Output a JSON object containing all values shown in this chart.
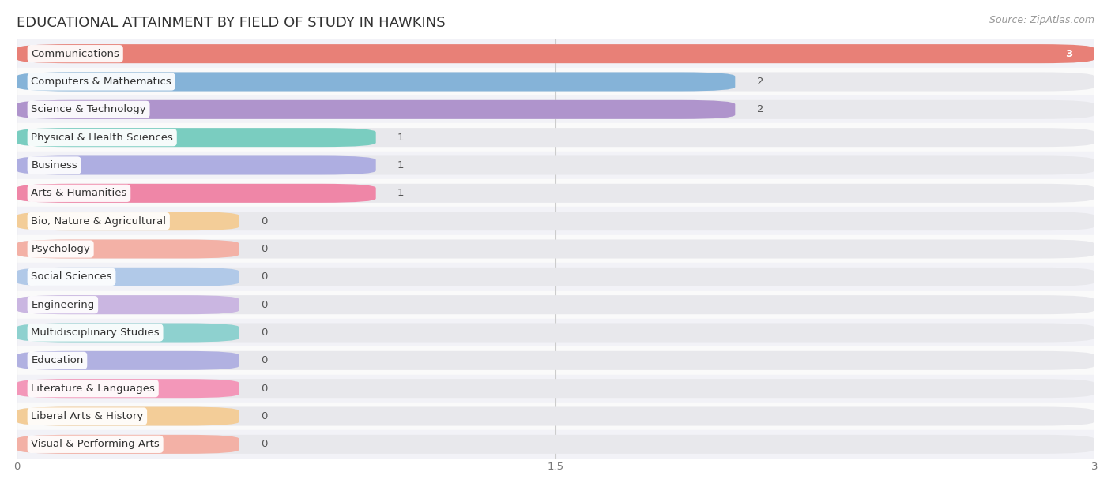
{
  "title": "EDUCATIONAL ATTAINMENT BY FIELD OF STUDY IN HAWKINS",
  "source": "Source: ZipAtlas.com",
  "categories": [
    "Communications",
    "Computers & Mathematics",
    "Science & Technology",
    "Physical & Health Sciences",
    "Business",
    "Arts & Humanities",
    "Bio, Nature & Agricultural",
    "Psychology",
    "Social Sciences",
    "Engineering",
    "Multidisciplinary Studies",
    "Education",
    "Literature & Languages",
    "Liberal Arts & History",
    "Visual & Performing Arts"
  ],
  "values": [
    3,
    2,
    2,
    1,
    1,
    1,
    0,
    0,
    0,
    0,
    0,
    0,
    0,
    0,
    0
  ],
  "bar_colors": [
    "#E8756A",
    "#7aaed6",
    "#a98bc9",
    "#6ecbbc",
    "#a8a8e0",
    "#f07ba0",
    "#f5c98a",
    "#f5a89a",
    "#a8c4e8",
    "#c5aee0",
    "#7ececa",
    "#a8a8e0",
    "#f589b0",
    "#f5c98a",
    "#f5a89a"
  ],
  "xlim": [
    0,
    3
  ],
  "xticks": [
    0,
    1.5,
    3
  ],
  "bar_bg_color": "#e8e8ec",
  "row_bg_colors": [
    "#f2f2f7",
    "#fafafa"
  ],
  "title_fontsize": 13,
  "label_fontsize": 9.5,
  "value_fontsize": 9.5,
  "source_fontsize": 9
}
